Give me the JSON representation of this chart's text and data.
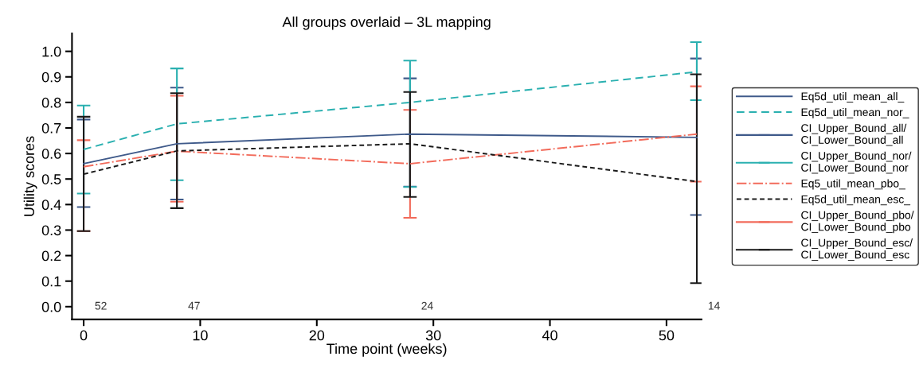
{
  "chart_data": {
    "type": "line",
    "title": "All groups overlaid – 3L mapping",
    "xlabel": "Time point (weeks)",
    "ylabel": "Utility scores",
    "x": [
      0,
      8,
      28,
      52.6
    ],
    "xlim": [
      -1,
      53
    ],
    "xticks": [
      0,
      10,
      20,
      30,
      40,
      50
    ],
    "ylim": [
      -0.05,
      1.07
    ],
    "yticks": [
      {
        "value": 0,
        "label": "0.0"
      },
      0.1,
      0.2,
      0.3,
      0.4,
      0.5,
      0.6,
      0.7,
      0.8,
      0.9,
      {
        "value": 1,
        "label": "1.0"
      }
    ],
    "series": [
      {
        "name": "Eq5d_util_mean_all_",
        "color": "#3f5a8a",
        "line_style": "solid",
        "values": [
          0.56,
          0.638,
          0.676,
          0.663
        ],
        "errors": [
          [
            0.39,
            0.733
          ],
          [
            0.42,
            0.858
          ],
          [
            0.47,
            0.894
          ],
          [
            0.359,
            0.972
          ]
        ]
      },
      {
        "name": "Eq5d_util_mean_nor_",
        "color": "#2ab0b0",
        "line_style": "dashed",
        "values": [
          0.616,
          0.716,
          0.8,
          0.92
        ],
        "errors": [
          [
            0.443,
            0.788
          ],
          [
            0.495,
            0.933
          ],
          [
            0.469,
            0.964
          ],
          [
            0.809,
            1.036
          ]
        ]
      },
      {
        "name": "CI_Upper_Bound_all/\nCI_Lower_Bound_all",
        "color": "#3f5a8a",
        "values": [
          null,
          null,
          null,
          null
        ]
      },
      {
        "name": "CI_Upper_Bound_nor/\nCI_Lower_Bound_nor",
        "color": "#2ab0b0",
        "values": [
          null,
          null,
          null,
          null
        ]
      },
      {
        "name": "Eq5_util_mean_pbo_",
        "color": "#f26b5b",
        "line_style": "dashdot",
        "values": [
          0.548,
          0.609,
          0.56,
          0.676
        ],
        "errors": [
          [
            0.296,
            0.652
          ],
          [
            0.411,
            0.826
          ],
          [
            0.348,
            0.771
          ],
          [
            0.49,
            0.863
          ]
        ]
      },
      {
        "name": "Eq5d_util_mean_esc_",
        "color": "#1a1a1a",
        "line_style": "dashed",
        "values": [
          0.519,
          0.61,
          0.638,
          0.49
        ],
        "errors": [
          [
            0.296,
            0.744
          ],
          [
            0.386,
            0.836
          ],
          [
            0.43,
            0.841
          ],
          [
            0.092,
            0.91
          ]
        ]
      },
      {
        "name": "CI_Upper_Bound_pbo/\nCI_Lower_Bound_pbo",
        "color": "#f26b5b",
        "values": [
          null,
          null,
          null,
          null
        ]
      },
      {
        "name": "CI_Upper_Bound_esc/\nCI_Lower_Bound_esc",
        "color": "#1a1a1a",
        "values": [
          null,
          null,
          null,
          null
        ]
      }
    ],
    "annotations": [
      "52",
      "47",
      "24",
      "14"
    ],
    "legend": "right",
    "grid": false
  }
}
